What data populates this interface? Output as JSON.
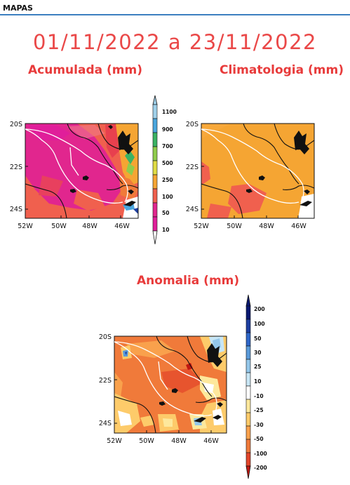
{
  "header": {
    "title": "MAPAS"
  },
  "period": "01/11/2022 a 23/11/2022",
  "maps": {
    "acumulada": {
      "title": "Acumulada (mm)",
      "y_ticks": [
        "20S",
        "22S",
        "24S"
      ],
      "x_ticks": [
        "52W",
        "50W",
        "48W",
        "46W"
      ]
    },
    "climatologia": {
      "title": "Climatologia (mm)",
      "y_ticks": [
        "20S",
        "22S",
        "24S"
      ],
      "x_ticks": [
        "52W",
        "50W",
        "48W",
        "46W"
      ]
    },
    "anomalia": {
      "title": "Anomalia (mm)",
      "y_ticks": [
        "20S",
        "22S",
        "24S"
      ],
      "x_ticks": [
        "52W",
        "50W",
        "48W",
        "46W"
      ]
    }
  },
  "colorbars": {
    "acumulada": {
      "labels": [
        "1100",
        "900",
        "700",
        "500",
        "250",
        "100",
        "50",
        "10"
      ],
      "colors": [
        "#9fd0ea",
        "#4aa6de",
        "#3ab364",
        "#8fcc4c",
        "#e0dc44",
        "#f5a533",
        "#f0604e",
        "#e1268e",
        "#e01e9a"
      ]
    },
    "anomalia": {
      "labels": [
        "200",
        "100",
        "50",
        "30",
        "25",
        "10",
        "-10",
        "-25",
        "-30",
        "-50",
        "-100",
        "-200"
      ],
      "colors": [
        "#081870",
        "#1d3ea0",
        "#2e66c8",
        "#5a9ad9",
        "#94c7ea",
        "#c8e6f5",
        "#ffffff",
        "#fde89c",
        "#fdcb6a",
        "#f9a14c",
        "#f07a3a",
        "#e2452a",
        "#c01812"
      ]
    }
  },
  "map_colors": {
    "boundary": "#111111",
    "river": "#ffffff",
    "ocean": "#ffffff"
  }
}
